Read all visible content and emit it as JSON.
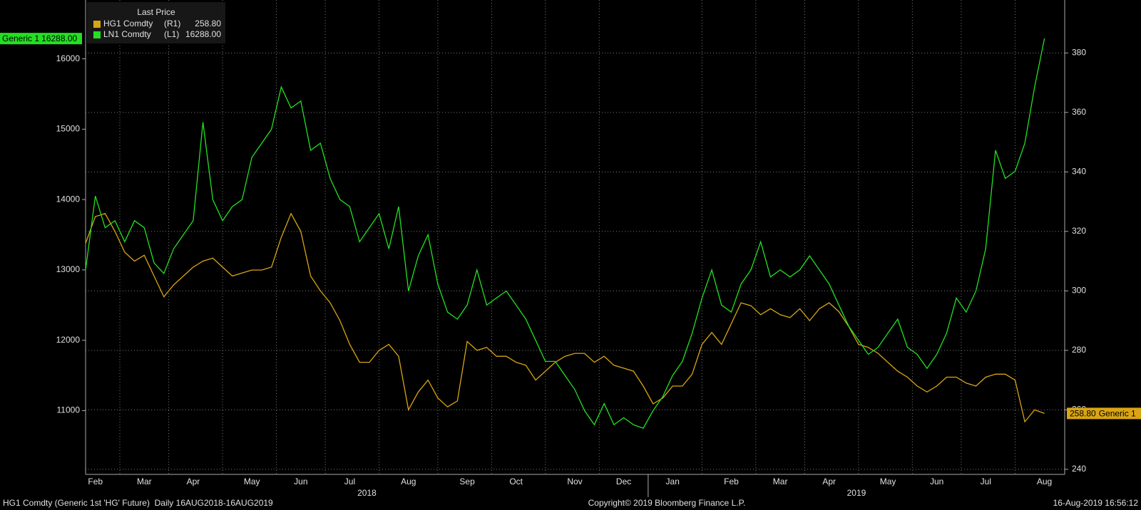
{
  "chart_data": {
    "type": "line",
    "legend_title": "Last Price",
    "categories": [
      null,
      "Feb",
      null,
      null,
      null,
      null,
      "Mar",
      null,
      null,
      null,
      null,
      "Apr",
      null,
      null,
      null,
      null,
      null,
      "May",
      null,
      null,
      null,
      null,
      "Jun",
      null,
      null,
      null,
      null,
      "Jul",
      null,
      null,
      null,
      null,
      null,
      "Aug",
      null,
      null,
      null,
      null,
      null,
      "Sep",
      null,
      null,
      null,
      null,
      "Oct",
      null,
      null,
      null,
      null,
      null,
      "Nov",
      null,
      null,
      null,
      null,
      "Dec",
      null,
      null,
      null,
      null,
      "Jan",
      null,
      null,
      null,
      null,
      null,
      "Feb",
      null,
      null,
      null,
      null,
      "Mar",
      null,
      null,
      null,
      null,
      "Apr",
      null,
      null,
      null,
      null,
      null,
      "May",
      null,
      null,
      null,
      null,
      "Jun",
      null,
      null,
      null,
      null,
      "Jul",
      null,
      null,
      null,
      null,
      null,
      "Aug"
    ],
    "year_labels": [
      "2018",
      "2019"
    ],
    "series": [
      {
        "name": "HG1 Comdty",
        "legend_axis_label": "(R1)",
        "axis": "y2",
        "color": "#d9a514",
        "last_price": {
          "value": 258.8,
          "label": "258.80"
        },
        "tag_label": "Generic 1",
        "values": [
          316,
          325,
          326,
          320,
          313,
          310,
          312,
          305,
          298,
          302,
          305,
          308,
          310,
          311,
          308,
          305,
          306,
          307,
          307,
          308,
          318,
          326,
          320,
          305,
          300,
          296,
          290,
          282,
          276,
          276,
          280,
          282,
          278,
          260,
          266,
          270,
          264,
          261,
          263,
          283,
          280,
          281,
          278,
          278,
          276,
          275,
          270,
          273,
          276,
          278,
          279,
          279,
          276,
          278,
          275,
          274,
          273,
          268,
          262,
          264,
          268,
          268,
          272,
          282,
          286,
          282,
          289,
          296,
          295,
          292,
          294,
          292,
          291,
          294,
          290,
          294,
          296,
          293,
          288,
          282,
          281,
          279,
          276,
          273,
          271,
          268,
          266,
          268,
          271,
          271,
          269,
          268,
          271,
          272,
          272,
          270,
          256,
          260,
          258.8
        ]
      },
      {
        "name": "LN1 Comdty",
        "legend_axis_label": "(L1)",
        "axis": "y",
        "color": "#22e022",
        "last_price": {
          "value": 16288,
          "label": "16288.00"
        },
        "tag_label": "Generic 1",
        "values": [
          13000,
          14050,
          13600,
          13700,
          13400,
          13700,
          13600,
          13100,
          12950,
          13300,
          13500,
          13700,
          15100,
          14000,
          13700,
          13900,
          14000,
          14600,
          14800,
          15000,
          15600,
          15300,
          15400,
          14700,
          14800,
          14300,
          14000,
          13900,
          13400,
          13600,
          13800,
          13300,
          13900,
          12700,
          13200,
          13500,
          12800,
          12400,
          12300,
          12500,
          13000,
          12500,
          12600,
          12700,
          12500,
          12300,
          12000,
          11700,
          11700,
          11500,
          11300,
          11000,
          10800,
          11100,
          10800,
          10900,
          10800,
          10750,
          11000,
          11200,
          11500,
          11700,
          12100,
          12600,
          13000,
          12500,
          12400,
          12800,
          13000,
          13400,
          12900,
          13000,
          12900,
          13000,
          13200,
          13000,
          12800,
          12500,
          12200,
          12000,
          11800,
          11900,
          12100,
          12300,
          11900,
          11800,
          11600,
          11800,
          12100,
          12600,
          12400,
          12700,
          13300,
          14700,
          14300,
          14400,
          14800,
          15600,
          16288
        ]
      }
    ],
    "ylim": [
      10094,
      16836
    ],
    "yticks": [
      11000,
      12000,
      13000,
      14000,
      15000,
      16000
    ],
    "y2lim": [
      238.3,
      397.8
    ],
    "y2ticks": [
      240,
      260,
      280,
      300,
      320,
      340,
      360,
      380
    ],
    "grid": true,
    "footer": {
      "left": "HG1 Comdty (Generic 1st 'HG' Future)  Daily 16AUG2018-16AUG2019",
      "center": "Copyright© 2019 Bloomberg Finance L.P.",
      "right": "16-Aug-2019 16:56:12"
    }
  }
}
